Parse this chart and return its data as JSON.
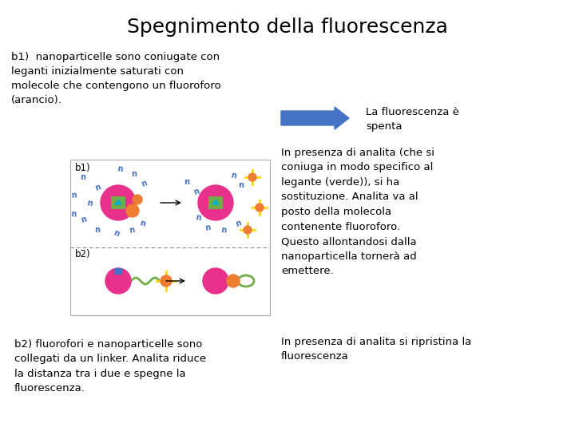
{
  "title": "Spegnimento della fluorescenza",
  "title_fontsize": 18,
  "bg_color": "#ffffff",
  "text_left_top": "b1)  nanoparticelle sono coniugate con\nleganti inizialmente saturati con\nmolecole che contengono un fluoroforo\n(arancio).",
  "text_left_bottom": "b2) fluorofori e nanoparticelle sono\ncollegati da un linker. Analita riduce\nla distanza tra i due e spegne la\nfluorescenza.",
  "arrow_label": "La fluorescenza è\nspenta",
  "text_right_main": "In presenza di analita (che si\nconiuga in modo specifico al\nlegante (verde)), si ha\nsostituzione. Analita va al\nposto della molecola\ncontenente fluoroforo.\nQuesto allontandosi dalla\nnanoparticella tornerà ad\nemettere.",
  "text_right_bottom": "In presenza di analita si ripristina la\nfluorescenza",
  "fontsize_body": 9.5,
  "arrow_color": "#4472C4",
  "pink": "#e8318a",
  "green": "#70ad47",
  "orange": "#ed7d31",
  "blue": "#4472C4",
  "yellow": "#ffd700",
  "ligand_color": "#4472C4"
}
